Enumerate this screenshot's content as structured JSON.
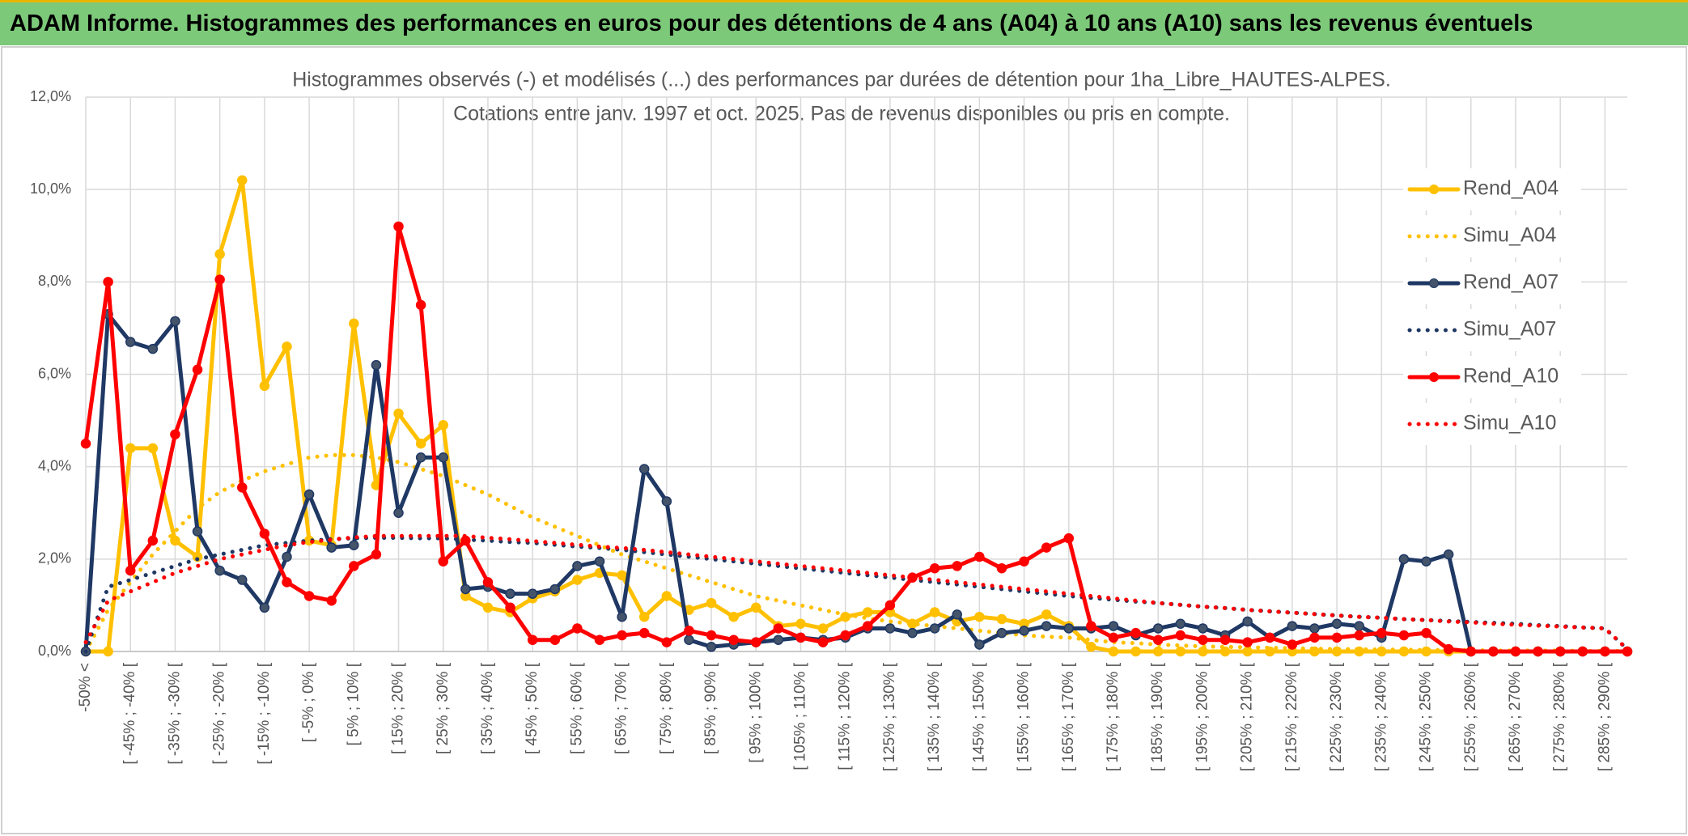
{
  "header": {
    "title": "ADAM Informe. Histogrammes des performances en euros pour des détentions de 4 ans (A04) à 10 ans (A10) sans les revenus éventuels"
  },
  "chart_data": {
    "type": "line",
    "title": "Histogrammes observés (-) et modélisés (...) des performances par durées de détention pour 1ha_Libre_HAUTES-ALPES.",
    "subtitle": "Cotations entre janv. 1997 et oct. 2025. Pas de revenus disponibles ou pris en compte.",
    "categories": [
      "-50% <",
      null,
      "[ -45% ; -40% [",
      null,
      "[ -35% ; -30% [",
      null,
      "[ -25% ; -20% [",
      null,
      "[ -15% ; -10% [",
      null,
      "[ -5% ; 0% [",
      null,
      "[ 5% ; 10% [",
      null,
      "[ 15% ; 20% [",
      null,
      "[ 25% ; 30% [",
      null,
      "[ 35% ; 40% [",
      null,
      "[ 45% ; 50% [",
      null,
      "[ 55% ; 60% [",
      null,
      "[ 65% ; 70% [",
      null,
      "[ 75% ; 80% [",
      null,
      "[ 85% ; 90% [",
      null,
      "[ 95% ; 100% [",
      null,
      "[ 105% ; 110% [",
      null,
      "[ 115% ; 120% [",
      null,
      "[ 125% ; 130% [",
      null,
      "[ 135% ; 140% [",
      null,
      "[ 145% ; 150% [",
      null,
      "[ 155% ; 160% [",
      null,
      "[ 165% ; 170% [",
      null,
      "[ 175% ; 180% [",
      null,
      "[ 185% ; 190% [",
      null,
      "[ 195% ; 200% [",
      null,
      "[ 205% ; 210% [",
      null,
      "[ 215% ; 220% [",
      null,
      "[ 225% ; 230% [",
      null,
      "[ 235% ; 240% [",
      null,
      "[ 245% ; 250% [",
      null,
      "[ 255% ; 260% [",
      null,
      "[ 265% ; 270% [",
      null,
      "[ 275% ; 280% [",
      null,
      "[ 285% ; 290% [",
      null
    ],
    "series": [
      {
        "name": "Rend_A04",
        "color": "#ffc000",
        "style": "solid",
        "markers": true,
        "values": [
          0,
          0,
          4.4,
          4.4,
          2.4,
          2.05,
          8.6,
          10.2,
          5.75,
          6.6,
          2.4,
          2.3,
          7.1,
          3.6,
          5.15,
          4.5,
          4.9,
          1.2,
          0.95,
          0.85,
          1.15,
          1.3,
          1.55,
          1.7,
          1.65,
          0.75,
          1.2,
          0.9,
          1.05,
          0.75,
          0.95,
          0.55,
          0.6,
          0.5,
          0.75,
          0.85,
          0.85,
          0.6,
          0.85,
          0.65,
          0.75,
          0.7,
          0.6,
          0.8,
          0.55,
          0.1,
          0,
          0,
          0,
          0,
          0,
          0,
          0,
          0,
          0,
          0,
          0,
          0,
          0,
          0,
          0,
          0,
          0,
          0,
          0,
          0,
          0,
          0,
          0,
          0
        ]
      },
      {
        "name": "Simu_A04",
        "color": "#ffc000",
        "style": "dotted",
        "markers": false,
        "values": [
          0,
          0.9,
          1.5,
          2.1,
          2.6,
          3.1,
          3.45,
          3.7,
          3.9,
          4.05,
          4.2,
          4.25,
          4.25,
          4.2,
          4.1,
          3.95,
          3.8,
          3.6,
          3.4,
          3.15,
          2.9,
          2.7,
          2.5,
          2.3,
          2.1,
          1.95,
          1.8,
          1.65,
          1.5,
          1.35,
          1.2,
          1.1,
          1.0,
          0.9,
          0.8,
          0.72,
          0.65,
          0.6,
          0.55,
          0.5,
          0.45,
          0.4,
          0.35,
          0.32,
          0.3,
          0.25,
          0.2,
          0.18,
          0.15,
          0.13,
          0.11,
          0.1,
          0.09,
          0.08,
          0.07,
          0.06,
          0.05,
          0.05,
          0.04,
          0.04,
          0.03,
          0.03,
          0.03,
          0.02,
          0.02,
          0.02,
          0.02,
          0.01,
          0.01,
          0.01
        ]
      },
      {
        "name": "Rend_A07",
        "color": "#1f3864",
        "style": "solid",
        "markers": true,
        "values": [
          0,
          7.3,
          6.7,
          6.55,
          7.15,
          2.6,
          1.75,
          1.55,
          0.95,
          2.05,
          3.4,
          2.25,
          2.3,
          6.2,
          3.0,
          4.2,
          4.2,
          1.35,
          1.4,
          1.25,
          1.25,
          1.35,
          1.85,
          1.95,
          0.75,
          3.95,
          3.25,
          0.25,
          0.1,
          0.15,
          0.2,
          0.25,
          0.3,
          0.25,
          0.3,
          0.5,
          0.5,
          0.4,
          0.5,
          0.8,
          0.15,
          0.4,
          0.45,
          0.55,
          0.5,
          0.5,
          0.55,
          0.35,
          0.5,
          0.6,
          0.5,
          0.35,
          0.65,
          0.3,
          0.55,
          0.5,
          0.6,
          0.55,
          0.3,
          2.0,
          1.95,
          2.1,
          0,
          0,
          0,
          0,
          0,
          0,
          0,
          0
        ]
      },
      {
        "name": "Simu_A07",
        "color": "#1f3864",
        "style": "dotted",
        "markers": false,
        "values": [
          0,
          1.4,
          1.55,
          1.7,
          1.85,
          2.0,
          2.1,
          2.2,
          2.3,
          2.35,
          2.4,
          2.43,
          2.45,
          2.46,
          2.46,
          2.45,
          2.45,
          2.42,
          2.4,
          2.37,
          2.35,
          2.31,
          2.27,
          2.24,
          2.2,
          2.15,
          2.1,
          2.05,
          2.0,
          1.95,
          1.9,
          1.85,
          1.8,
          1.75,
          1.7,
          1.65,
          1.6,
          1.55,
          1.5,
          1.45,
          1.4,
          1.35,
          1.3,
          1.25,
          1.2,
          1.16,
          1.12,
          1.08,
          1.05,
          1.01,
          0.97,
          0.94,
          0.9,
          0.87,
          0.84,
          0.81,
          0.78,
          0.75,
          0.73,
          0.7,
          0.68,
          0.66,
          0.64,
          0.62,
          0.6,
          0.57,
          0.55,
          0.52,
          0.5,
          0.05
        ]
      },
      {
        "name": "Rend_A10",
        "color": "#ff0000",
        "style": "solid",
        "markers": true,
        "values": [
          4.5,
          8.0,
          1.75,
          2.4,
          4.7,
          6.1,
          8.05,
          3.55,
          2.55,
          1.5,
          1.2,
          1.1,
          1.85,
          2.1,
          9.2,
          7.5,
          1.95,
          2.4,
          1.5,
          0.95,
          0.25,
          0.25,
          0.5,
          0.25,
          0.35,
          0.4,
          0.2,
          0.45,
          0.35,
          0.25,
          0.2,
          0.5,
          0.3,
          0.2,
          0.35,
          0.55,
          1.0,
          1.6,
          1.8,
          1.85,
          2.05,
          1.8,
          1.95,
          2.25,
          2.45,
          0.55,
          0.3,
          0.4,
          0.25,
          0.35,
          0.25,
          0.25,
          0.2,
          0.3,
          0.15,
          0.3,
          0.3,
          0.35,
          0.4,
          0.35,
          0.4,
          0.05,
          0,
          0,
          0,
          0,
          0,
          0,
          0,
          0
        ]
      },
      {
        "name": "Simu_A10",
        "color": "#ff0000",
        "style": "dotted",
        "markers": false,
        "values": [
          0.2,
          1.1,
          1.3,
          1.5,
          1.7,
          1.85,
          2.0,
          2.1,
          2.2,
          2.3,
          2.37,
          2.42,
          2.47,
          2.5,
          2.5,
          2.5,
          2.5,
          2.5,
          2.46,
          2.43,
          2.39,
          2.35,
          2.31,
          2.27,
          2.24,
          2.2,
          2.15,
          2.1,
          2.05,
          2.0,
          1.95,
          1.9,
          1.85,
          1.8,
          1.75,
          1.7,
          1.65,
          1.6,
          1.55,
          1.5,
          1.45,
          1.4,
          1.35,
          1.3,
          1.25,
          1.2,
          1.15,
          1.1,
          1.05,
          1.01,
          0.97,
          0.94,
          0.9,
          0.87,
          0.84,
          0.81,
          0.78,
          0.75,
          0.73,
          0.7,
          0.68,
          0.65,
          0.63,
          0.6,
          0.58,
          0.56,
          0.54,
          0.52,
          0.5,
          0.05
        ]
      }
    ],
    "ylim": [
      0,
      12
    ],
    "yticks": [
      {
        "value": 0,
        "label": "0,0%"
      },
      {
        "value": 2,
        "label": "2,0%"
      },
      {
        "value": 4,
        "label": "4,0%"
      },
      {
        "value": 6,
        "label": "6,0%"
      },
      {
        "value": 8,
        "label": "8,0%"
      },
      {
        "value": 10,
        "label": "10,0%"
      },
      {
        "value": 12,
        "label": "12,0%"
      }
    ],
    "grid": true,
    "legend": "right"
  }
}
